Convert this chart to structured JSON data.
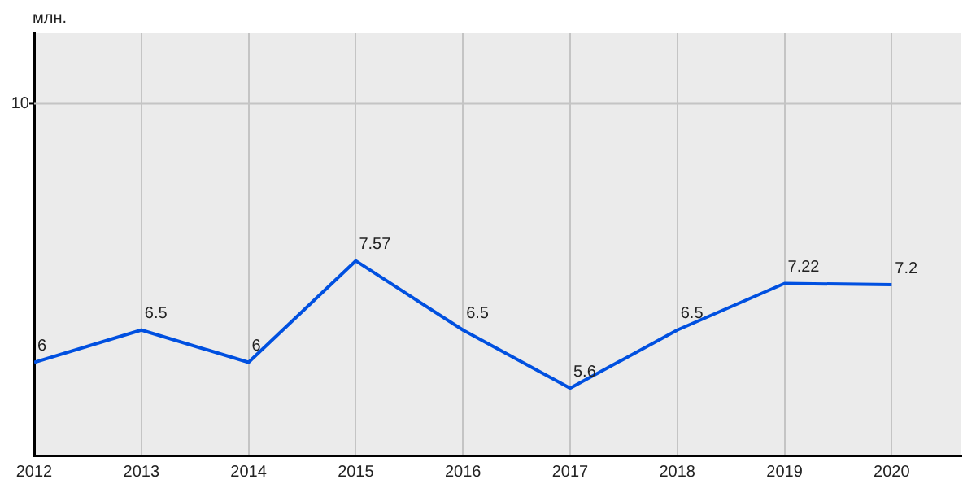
{
  "chart_data": {
    "type": "line",
    "ylabel": "млн.",
    "x": [
      2012,
      2013,
      2014,
      2015,
      2016,
      2017,
      2018,
      2019,
      2020
    ],
    "series": [
      {
        "color": "#0050e0",
        "values": [
          6,
          6.5,
          6,
          7.57,
          6.5,
          5.6,
          6.5,
          7.22,
          7.2
        ]
      }
    ],
    "xlim": [
      2012,
      2020.65
    ],
    "xticks": [
      2012,
      2013,
      2014,
      2015,
      2016,
      2017,
      2018,
      2019,
      2020
    ],
    "ylim": [
      4.56,
      11.1
    ],
    "ref_lines": [
      {
        "axis": "y",
        "value": 10,
        "label": "10",
        "color": "#c4c4c4",
        "line_style": "solid"
      }
    ],
    "grid": true,
    "marker": "none",
    "line_style": "solid",
    "data_labels": true,
    "legend": false
  }
}
